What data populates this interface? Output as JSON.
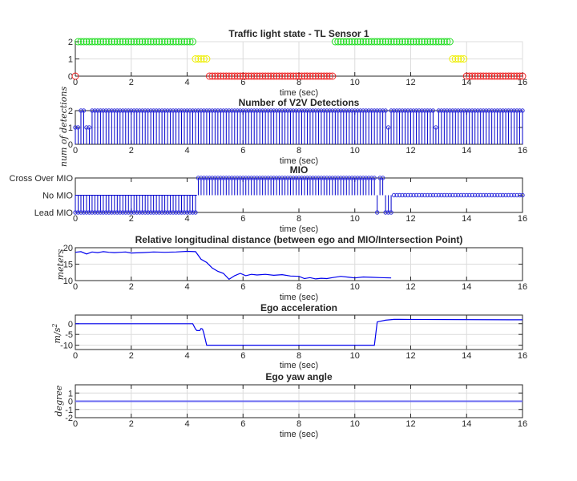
{
  "chart_data": [
    {
      "type": "scatter",
      "id": "traffic-light",
      "title": "Traffic light state - TL Sensor 1",
      "xlabel": "time (sec)",
      "ylabel": "",
      "xlim": [
        0,
        16
      ],
      "ylim": [
        0,
        2
      ],
      "xticks": [
        "0",
        "2",
        "4",
        "6",
        "8",
        "10",
        "12",
        "14",
        "16"
      ],
      "yticks": [
        "0",
        "1",
        "2"
      ],
      "grid": true,
      "marker": "circle-open",
      "series": [
        {
          "name": "green",
          "color": "#22dd22",
          "y": 2,
          "segments": [
            [
              0.1,
              4.2
            ],
            [
              9.3,
              13.4
            ]
          ]
        },
        {
          "name": "yellow",
          "color": "#eeee00",
          "y": 1,
          "segments": [
            [
              4.3,
              4.7
            ],
            [
              13.5,
              13.9
            ]
          ]
        },
        {
          "name": "red",
          "color": "#ee2222",
          "y": 0,
          "segments": [
            [
              0,
              0
            ],
            [
              4.8,
              9.2
            ],
            [
              14.0,
              16.0
            ]
          ]
        }
      ],
      "step": 0.1
    },
    {
      "type": "stem",
      "id": "v2v",
      "title": "Number of V2V Detections",
      "xlabel": "time (sec)",
      "ylabel": "num of detections",
      "xlim": [
        0,
        16
      ],
      "ylim": [
        0,
        2
      ],
      "xticks": [
        "0",
        "2",
        "4",
        "6",
        "8",
        "10",
        "12",
        "14",
        "16"
      ],
      "yticks": [
        "0",
        "1",
        "2"
      ],
      "grid": true,
      "color": "#0000cc",
      "step": 0.1,
      "default_value": 2,
      "exceptions": [
        [
          0.0,
          1
        ],
        [
          0.1,
          1
        ],
        [
          0.4,
          1
        ],
        [
          0.5,
          1
        ],
        [
          11.2,
          1
        ],
        [
          12.9,
          1
        ]
      ]
    },
    {
      "type": "stem",
      "id": "mio",
      "title": "MIO",
      "xlabel": "time (sec)",
      "ylabel": "",
      "xlim": [
        0,
        16
      ],
      "ylim": [
        0,
        2
      ],
      "xticks": [
        "0",
        "2",
        "4",
        "6",
        "8",
        "10",
        "12",
        "14",
        "16"
      ],
      "yticks": [
        "Lead MIO",
        "No MIO",
        "Cross Over MIO"
      ],
      "grid": false,
      "color": "#0000cc",
      "step": 0.1,
      "segments": [
        {
          "from": 0.0,
          "to": 4.3,
          "value": 0
        },
        {
          "from": 4.4,
          "to": 10.7,
          "value": 2
        },
        {
          "from": 10.8,
          "to": 10.8,
          "value": 0
        },
        {
          "from": 10.9,
          "to": 11.0,
          "value": 2
        },
        {
          "from": 11.1,
          "to": 11.3,
          "value": 0
        },
        {
          "from": 11.4,
          "to": 16.0,
          "value": 1
        }
      ]
    },
    {
      "type": "line",
      "id": "distance",
      "title": "Relative longitudinal distance (between ego and MIO/Intersection Point)",
      "xlabel": "time (sec)",
      "ylabel": "meters",
      "xlim": [
        0,
        16
      ],
      "ylim": [
        10,
        20
      ],
      "xticks": [
        "0",
        "2",
        "4",
        "6",
        "8",
        "10",
        "12",
        "14",
        "16"
      ],
      "yticks": [
        "10",
        "15",
        "20"
      ],
      "grid": true,
      "color": "#0000ee",
      "x": [
        0,
        0.2,
        0.4,
        0.6,
        0.8,
        1.0,
        1.2,
        1.4,
        1.6,
        1.8,
        2.0,
        2.4,
        2.8,
        3.2,
        3.6,
        4.0,
        4.3,
        4.5,
        4.7,
        4.9,
        5.1,
        5.3,
        5.5,
        5.7,
        5.9,
        6.1,
        6.3,
        6.5,
        6.8,
        7.1,
        7.4,
        7.7,
        8.0,
        8.2,
        8.4,
        8.6,
        8.8,
        9.0,
        9.2,
        9.5,
        9.8,
        10.0,
        10.3,
        10.6,
        10.9,
        11.3
      ],
      "y": [
        18.6,
        18.8,
        18.1,
        18.7,
        18.5,
        18.8,
        18.6,
        18.5,
        18.6,
        18.7,
        18.4,
        18.5,
        18.7,
        18.6,
        18.7,
        18.9,
        18.8,
        16.5,
        15.5,
        13.8,
        12.8,
        12.2,
        10.4,
        11.5,
        12.2,
        11.5,
        11.9,
        11.7,
        11.9,
        11.6,
        11.8,
        11.4,
        11.3,
        10.6,
        10.9,
        10.5,
        10.7,
        10.6,
        10.9,
        11.3,
        11.0,
        10.8,
        11.1,
        11.0,
        10.9,
        10.8
      ]
    },
    {
      "type": "line",
      "id": "accel",
      "title": "Ego acceleration",
      "xlabel": "time (sec)",
      "ylabel": "m/s2",
      "xlim": [
        0,
        16
      ],
      "ylim": [
        -12,
        4
      ],
      "xticks": [
        "0",
        "2",
        "4",
        "6",
        "8",
        "10",
        "12",
        "14",
        "16"
      ],
      "yticks": [
        "-10",
        "-5",
        "0"
      ],
      "ytick_values": [
        -10,
        -5,
        0
      ],
      "grid": true,
      "color": "#0000ee",
      "x": [
        0,
        4.2,
        4.3,
        4.35,
        4.45,
        4.5,
        4.55,
        4.6,
        4.7,
        10.7,
        10.8,
        11.1,
        11.4,
        11.6,
        16.0
      ],
      "y": [
        0,
        0,
        -2.5,
        -3.2,
        -3.2,
        -2.2,
        -2.5,
        -4.5,
        -10,
        -10,
        0.8,
        1.6,
        2.0,
        2.0,
        1.8
      ]
    },
    {
      "type": "line",
      "id": "yaw",
      "title": "Ego yaw angle",
      "xlabel": "time (sec)",
      "ylabel": "degree",
      "xlim": [
        0,
        16
      ],
      "ylim": [
        -2,
        2
      ],
      "xticks": [
        "0",
        "2",
        "4",
        "6",
        "8",
        "10",
        "12",
        "14",
        "16"
      ],
      "yticks": [
        "-2",
        "-1",
        "0",
        "1"
      ],
      "ytick_values": [
        -2,
        -1,
        0,
        1
      ],
      "grid": true,
      "color": "#6a6af0",
      "x": [
        0,
        16
      ],
      "y": [
        0,
        0
      ]
    }
  ]
}
